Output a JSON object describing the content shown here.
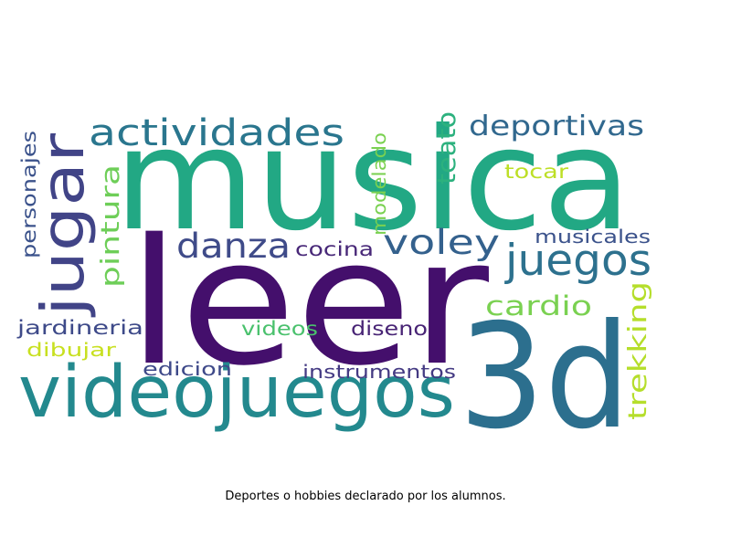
{
  "caption": "Deportes o hobbies declarado por los alumnos.",
  "word_cloud": {
    "background": "#ffffff",
    "words": [
      {
        "text": "musica",
        "color": "#22a884"
      },
      {
        "text": "leer",
        "color": "#440f6c"
      },
      {
        "text": "3d",
        "color": "#2c6f8e"
      },
      {
        "text": "videojuegos",
        "color": "#23898e"
      },
      {
        "text": "jugar",
        "color": "#414487"
      },
      {
        "text": "actividades",
        "color": "#2a768e"
      },
      {
        "text": "deportivas",
        "color": "#31688e"
      },
      {
        "text": "danza",
        "color": "#3f4b89"
      },
      {
        "text": "voley",
        "color": "#34618d"
      },
      {
        "text": "juegos",
        "color": "#2d718e"
      },
      {
        "text": "teato",
        "color": "#2cb17e"
      },
      {
        "text": "pintura",
        "color": "#6ece58"
      },
      {
        "text": "tocar",
        "color": "#bddf26"
      },
      {
        "text": "modelado",
        "color": "#7ad151"
      },
      {
        "text": "personajes",
        "color": "#3b528b"
      },
      {
        "text": "cocina",
        "color": "#482878"
      },
      {
        "text": "musicales",
        "color": "#3b528b"
      },
      {
        "text": "cardio",
        "color": "#7ad151"
      },
      {
        "text": "trekking",
        "color": "#b5de2b"
      },
      {
        "text": "jardineria",
        "color": "#3e4a89"
      },
      {
        "text": "videos",
        "color": "#4ac16d"
      },
      {
        "text": "diseno",
        "color": "#482475"
      },
      {
        "text": "dibujar",
        "color": "#c8e020"
      },
      {
        "text": "edicion",
        "color": "#3e4989"
      },
      {
        "text": "instrumentos",
        "color": "#443a83"
      }
    ]
  }
}
